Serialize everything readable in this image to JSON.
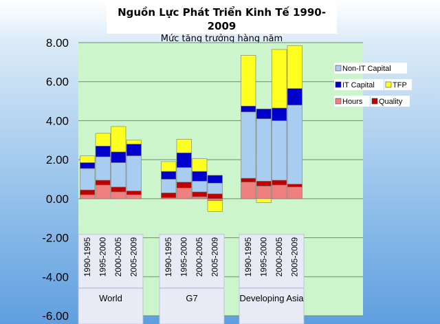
{
  "title": "Nguồn Lực Phát Triển Kinh Tế 1990-2009",
  "subtitle": "Mức tăng trưởng hàng năm",
  "chart_data": {
    "type": "bar",
    "stacked": true,
    "ylim": [
      -6,
      8
    ],
    "yticks": [
      "8.00",
      "6.00",
      "4.00",
      "2.00",
      "0.00",
      "-2.00",
      "-4.00",
      "-6.00"
    ],
    "groups": [
      {
        "name": "World",
        "periods": [
          "1990-1995",
          "1995-2000",
          "2000-2005",
          "2005-2009"
        ]
      },
      {
        "name": "G7",
        "periods": [
          "1990-1995",
          "1995-2000",
          "2000-2005",
          "2005-2009"
        ]
      },
      {
        "name": "Developing Asia",
        "periods": [
          "1990-1995",
          "1995-2000",
          "2000-2005",
          "2005-2009"
        ]
      }
    ],
    "series": [
      {
        "name": "Hours",
        "color": "#f08080",
        "values": [
          0.2,
          0.7,
          0.35,
          0.2,
          0.05,
          0.55,
          0.1,
          -0.1,
          0.85,
          0.65,
          0.7,
          0.6
        ]
      },
      {
        "name": "Quality",
        "color": "#c00000",
        "values": [
          0.25,
          0.25,
          0.25,
          0.2,
          0.25,
          0.3,
          0.25,
          0.25,
          0.2,
          0.25,
          0.25,
          0.15
        ]
      },
      {
        "name": "Non-IT Capital",
        "color": "#a8cdf0",
        "values": [
          1.1,
          1.2,
          1.25,
          1.8,
          0.7,
          0.75,
          0.55,
          0.55,
          3.4,
          3.2,
          3.05,
          4.05
        ]
      },
      {
        "name": "IT Capital",
        "color": "#0000cc",
        "values": [
          0.3,
          0.55,
          0.55,
          0.6,
          0.4,
          0.75,
          0.5,
          0.4,
          0.3,
          0.5,
          0.65,
          0.85
        ]
      },
      {
        "name": "TFP",
        "color": "#ffff20",
        "values": [
          0.35,
          0.65,
          1.3,
          0.2,
          0.5,
          0.7,
          0.65,
          -0.55,
          2.6,
          -0.2,
          3.0,
          2.2
        ]
      }
    ],
    "legend": [
      "Non-IT Capital",
      "IT Capital",
      "TFP",
      "Hours",
      "Quality"
    ]
  }
}
